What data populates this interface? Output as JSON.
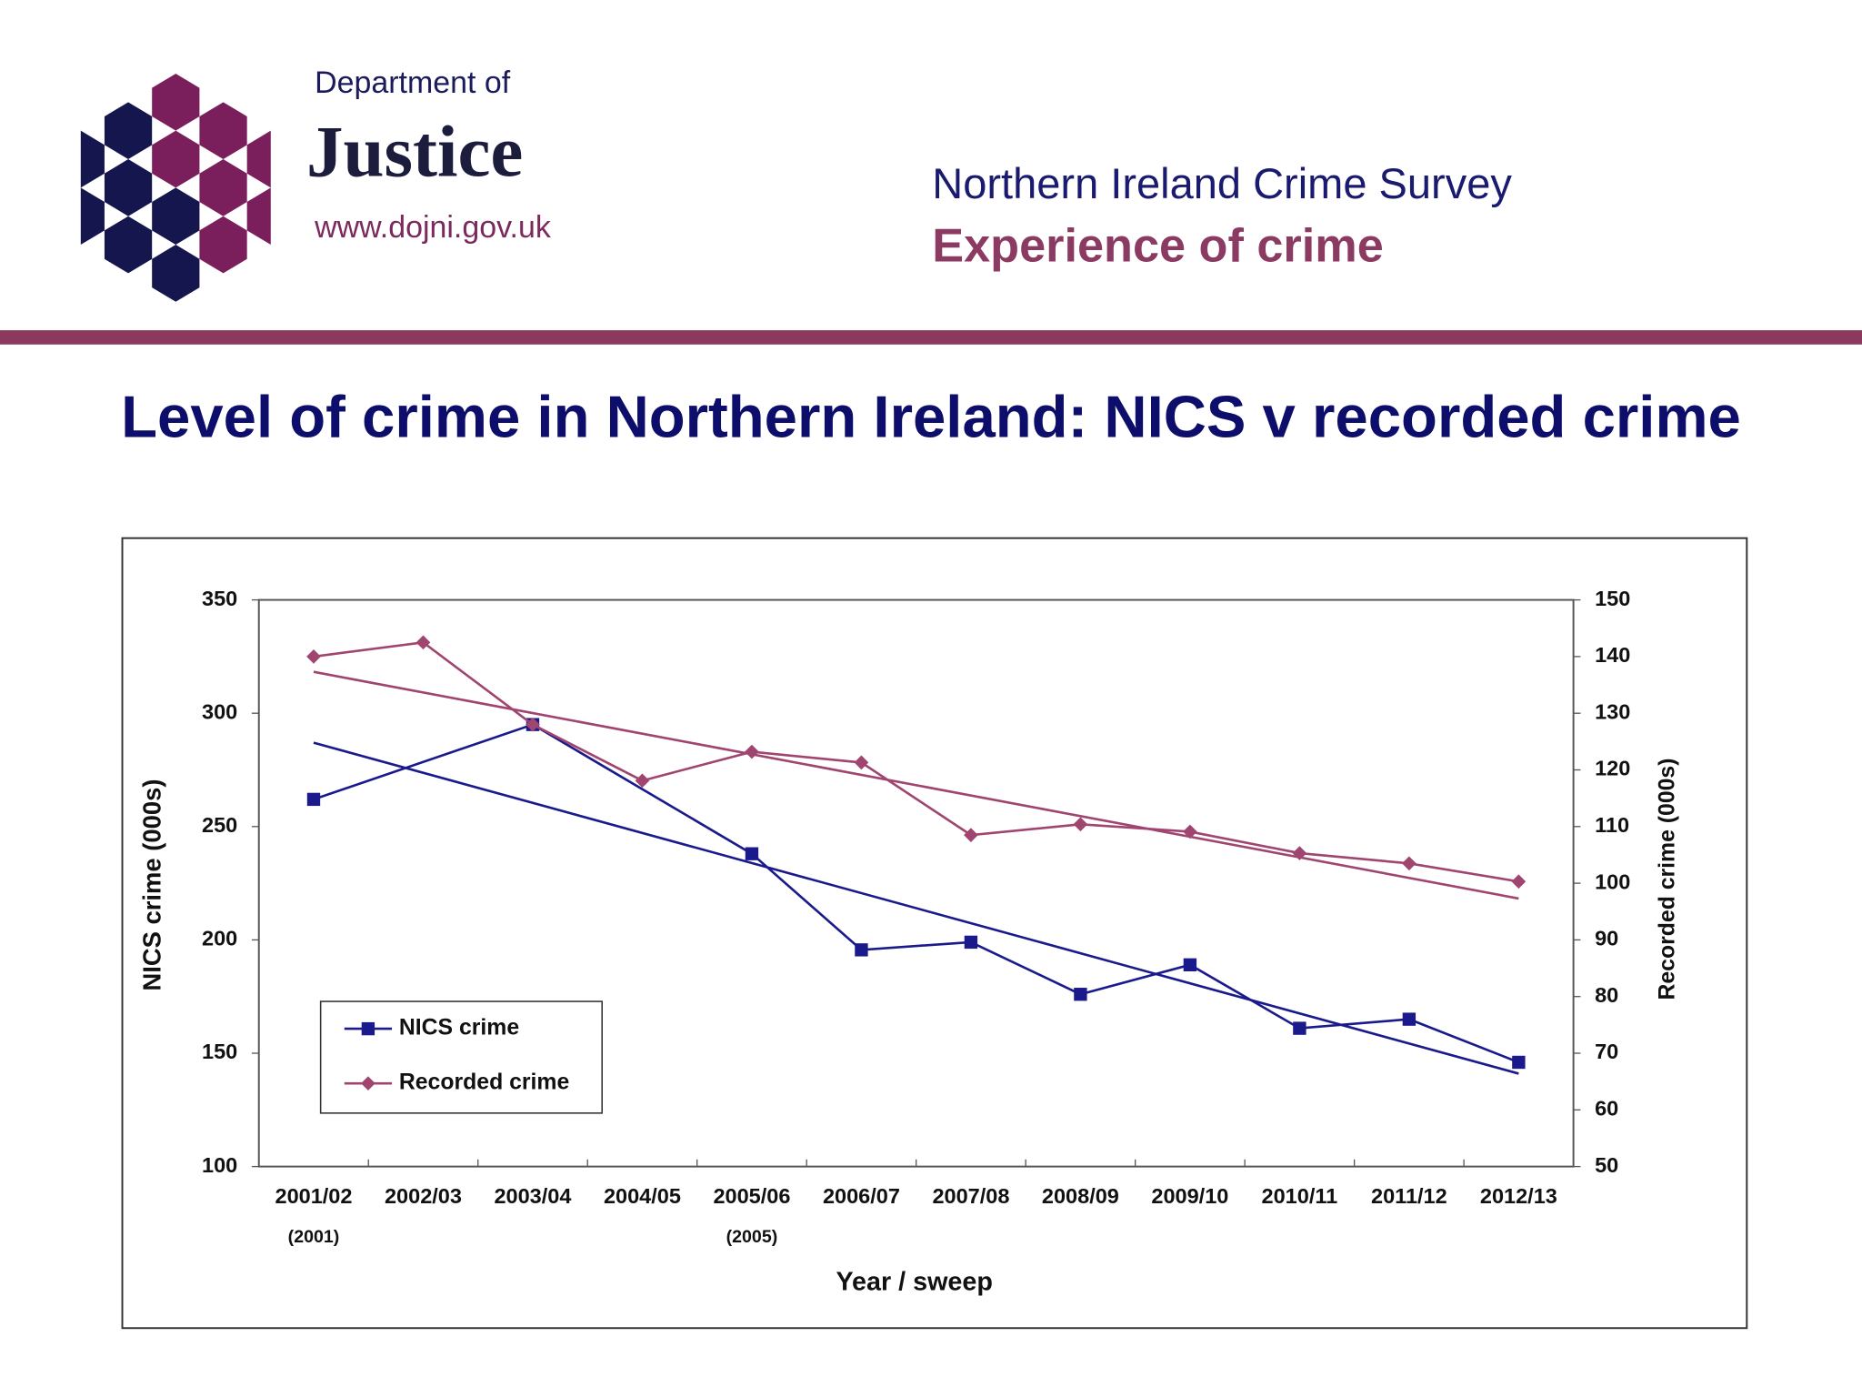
{
  "header": {
    "logo": {
      "line1": "Department of",
      "line2": "Justice",
      "url": "www.dojni.gov.uk"
    },
    "survey": "Northern Ireland Crime Survey",
    "section": "Experience of crime"
  },
  "chart_data": {
    "type": "line",
    "title": "Level of crime in Northern Ireland: NICS v recorded crime",
    "xlabel": "Year / sweep",
    "ylabel": "NICS crime (000s)",
    "y2label": "Recorded crime (000s)",
    "categories": [
      "2001/02",
      "2002/03",
      "2003/04",
      "2004/05",
      "2005/06",
      "2006/07",
      "2007/08",
      "2008/09",
      "2009/10",
      "2010/11",
      "2011/12",
      "2012/13"
    ],
    "annotations": [
      {
        "category": "2001/02",
        "text": "(2001)"
      },
      {
        "category": "2005/06",
        "text": "(2005)"
      }
    ],
    "series": [
      {
        "name": "NICS crime",
        "color": "#1a1a8c",
        "marker": "square",
        "x": [
          "2001/02",
          "2003/04",
          "2005/06",
          "2006/07",
          "2007/08",
          "2008/09",
          "2009/10",
          "2010/11",
          "2011/12",
          "2012/13"
        ],
        "values": [
          262,
          295,
          238,
          195.6,
          199,
          176,
          189,
          161,
          165,
          146
        ],
        "trend": [
          287,
          141
        ]
      },
      {
        "name": "Recorded crime",
        "color": "#a04570",
        "marker": "diamond",
        "axis": "y2",
        "values": [
          140,
          142.5,
          128,
          118.1,
          123.2,
          121.3,
          108.5,
          110.4,
          109.1,
          105.3,
          103.5,
          100.3
        ],
        "trend": [
          137.3,
          97.3
        ]
      }
    ],
    "ylim": [
      100,
      350
    ],
    "yticks": [
      100,
      150,
      200,
      250,
      300,
      350
    ],
    "y2lim": [
      50,
      150
    ],
    "y2ticks": [
      50,
      60,
      70,
      80,
      90,
      100,
      110,
      120,
      130,
      140,
      150
    ],
    "legend": "lower left"
  }
}
